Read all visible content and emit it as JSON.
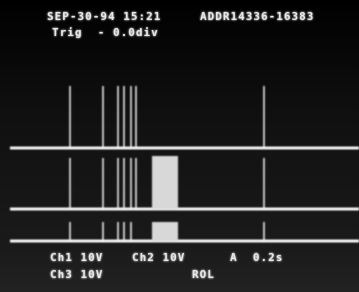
{
  "header": {
    "datetime": "SEP-30-94 15:21",
    "address": "ADDR14336-16383",
    "trigger": "Trig  - 0.0div"
  },
  "readout": {
    "ch1": "Ch1 10V",
    "ch2": "Ch2 10V",
    "timebase": "A  0.2s",
    "ch3": "Ch3 10V",
    "mode": "ROL"
  }
}
